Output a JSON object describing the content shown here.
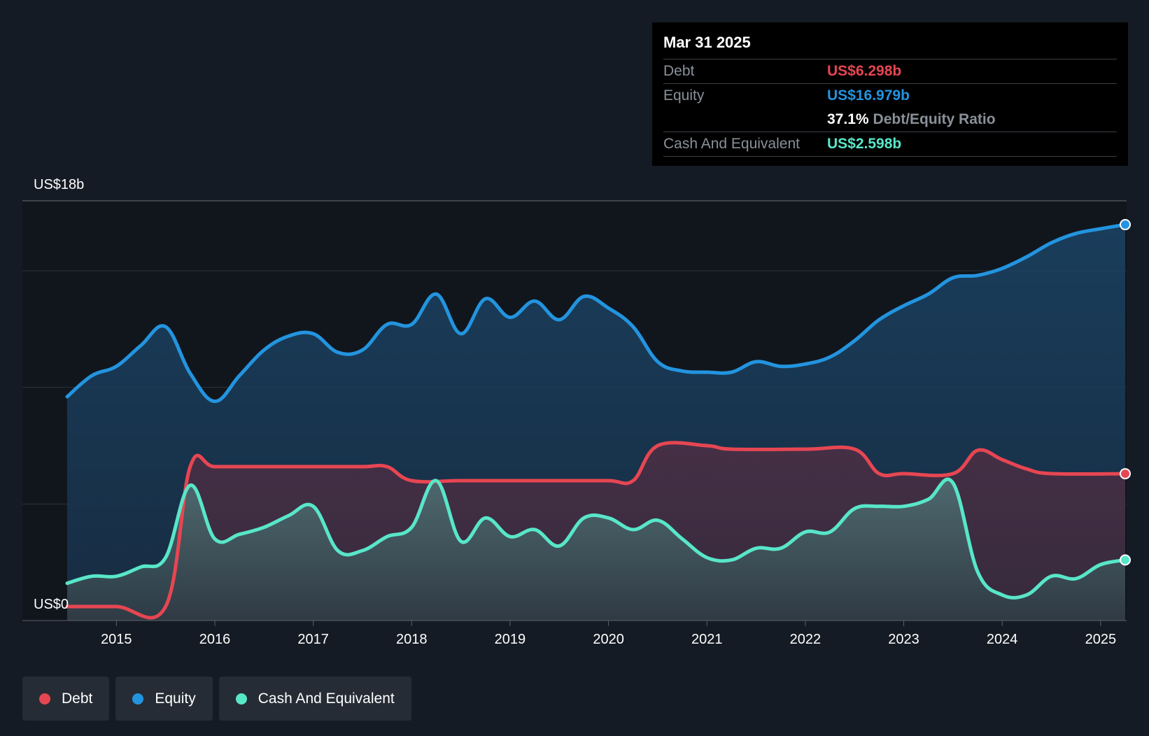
{
  "chart_data": {
    "type": "area",
    "y_axis": {
      "top_label": "US$18b",
      "bottom_label": "US$0",
      "ylim": [
        0,
        18
      ]
    },
    "x_ticks": [
      "2015",
      "2016",
      "2017",
      "2018",
      "2019",
      "2020",
      "2021",
      "2022",
      "2023",
      "2024",
      "2025"
    ],
    "x_range": [
      2014.5,
      2025.25
    ],
    "series": [
      {
        "name": "Equity",
        "color": "#2394df",
        "x": [
          2014.5,
          2014.75,
          2015.0,
          2015.25,
          2015.5,
          2015.75,
          2016.0,
          2016.25,
          2016.5,
          2016.75,
          2017.0,
          2017.25,
          2017.5,
          2017.75,
          2018.0,
          2018.25,
          2018.5,
          2018.75,
          2019.0,
          2019.25,
          2019.5,
          2019.75,
          2020.0,
          2020.25,
          2020.5,
          2020.75,
          2021.0,
          2021.25,
          2021.5,
          2021.75,
          2022.0,
          2022.25,
          2022.5,
          2022.75,
          2023.0,
          2023.25,
          2023.5,
          2023.75,
          2024.0,
          2024.25,
          2024.5,
          2024.75,
          2025.0,
          2025.25
        ],
        "values": [
          9.6,
          10.5,
          10.9,
          11.8,
          12.6,
          10.6,
          9.4,
          10.5,
          11.6,
          12.2,
          12.3,
          11.5,
          11.6,
          12.7,
          12.7,
          14.0,
          12.3,
          13.8,
          13.0,
          13.7,
          12.9,
          13.9,
          13.4,
          12.6,
          11.1,
          10.7,
          10.65,
          10.65,
          11.1,
          10.9,
          11.0,
          11.3,
          12.0,
          12.9,
          13.5,
          14.0,
          14.7,
          14.8,
          15.1,
          15.6,
          16.2,
          16.6,
          16.8,
          16.979
        ]
      },
      {
        "name": "Debt",
        "color": "#e64652",
        "x": [
          2014.5,
          2015.0,
          2015.5,
          2015.75,
          2016.0,
          2016.5,
          2017.0,
          2017.5,
          2017.75,
          2018.0,
          2018.5,
          2019.0,
          2019.5,
          2020.0,
          2020.25,
          2020.5,
          2021.0,
          2021.25,
          2022.0,
          2022.5,
          2022.75,
          2023.0,
          2023.5,
          2023.75,
          2024.0,
          2024.25,
          2024.5,
          2025.25
        ],
        "values": [
          0.6,
          0.6,
          0.6,
          6.6,
          6.6,
          6.6,
          6.6,
          6.6,
          6.6,
          6.0,
          6.0,
          6.0,
          6.0,
          6.0,
          6.0,
          7.5,
          7.5,
          7.35,
          7.35,
          7.35,
          6.3,
          6.3,
          6.3,
          7.3,
          6.9,
          6.5,
          6.3,
          6.298
        ]
      },
      {
        "name": "Cash And Equivalent",
        "color": "#58e6c9",
        "x": [
          2014.5,
          2014.75,
          2015.0,
          2015.25,
          2015.5,
          2015.75,
          2016.0,
          2016.25,
          2016.5,
          2016.75,
          2017.0,
          2017.25,
          2017.5,
          2017.75,
          2018.0,
          2018.25,
          2018.5,
          2018.75,
          2019.0,
          2019.25,
          2019.5,
          2019.75,
          2020.0,
          2020.25,
          2020.5,
          2020.75,
          2021.0,
          2021.25,
          2021.5,
          2021.75,
          2022.0,
          2022.25,
          2022.5,
          2022.75,
          2023.0,
          2023.25,
          2023.5,
          2023.75,
          2024.0,
          2024.25,
          2024.5,
          2024.75,
          2025.0,
          2025.25
        ],
        "values": [
          1.6,
          1.9,
          1.9,
          2.3,
          2.7,
          5.8,
          3.5,
          3.7,
          4.0,
          4.5,
          4.9,
          3.0,
          3.0,
          3.6,
          4.0,
          6.0,
          3.4,
          4.4,
          3.6,
          3.9,
          3.2,
          4.4,
          4.4,
          3.9,
          4.3,
          3.5,
          2.7,
          2.6,
          3.1,
          3.1,
          3.8,
          3.8,
          4.8,
          4.9,
          4.9,
          5.2,
          5.9,
          2.1,
          1.1,
          1.1,
          1.9,
          1.8,
          2.4,
          2.598
        ]
      }
    ]
  },
  "tooltip": {
    "date": "Mar 31 2025",
    "debt_label": "Debt",
    "debt_value": "US$6.298b",
    "equity_label": "Equity",
    "equity_value": "US$16.979b",
    "ratio_value": "37.1%",
    "ratio_label": "Debt/Equity Ratio",
    "cash_label": "Cash And Equivalent",
    "cash_value": "US$2.598b"
  },
  "legend": {
    "debt": "Debt",
    "equity": "Equity",
    "cash": "Cash And Equivalent"
  },
  "colors": {
    "debt": "#e64652",
    "equity": "#2394df",
    "cash": "#58e6c9",
    "background": "#151b24"
  }
}
